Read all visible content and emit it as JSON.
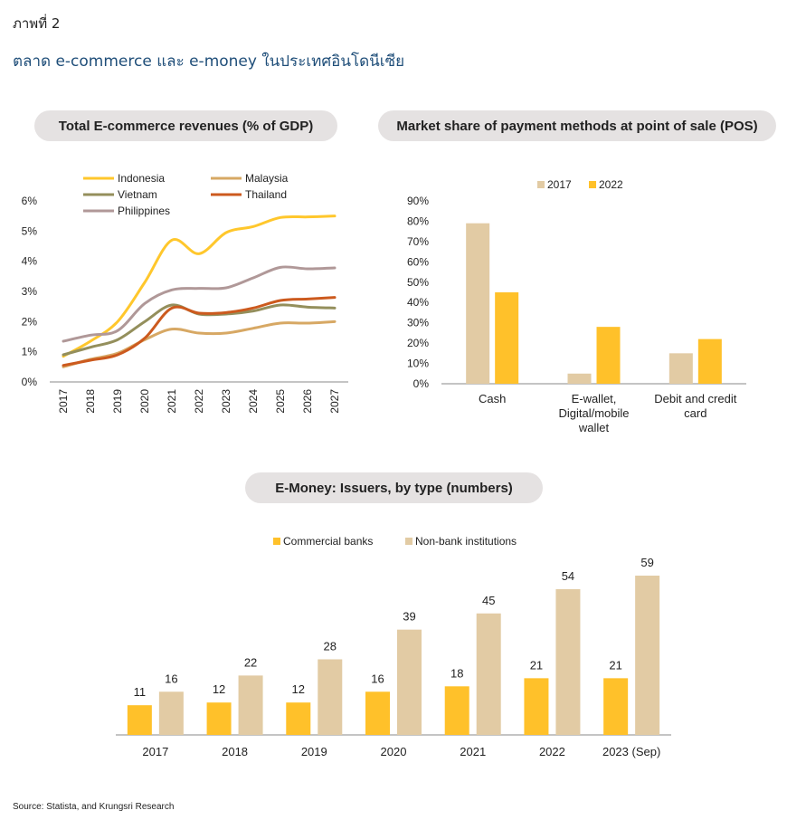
{
  "figure_label": "ภาพที่ 2",
  "figure_title": "ตลาด e-commerce และ e-money ในประเทศอินโดนีเซีย",
  "source": "Source:  Statista, and Krungsri Research",
  "chart_data": [
    {
      "type": "line",
      "title": "Total E-commerce revenues (% of GDP)",
      "x": [
        "2017",
        "2018",
        "2019",
        "2020",
        "2021",
        "2022",
        "2023",
        "2024",
        "2025",
        "2026",
        "2027"
      ],
      "y_ticks": [
        "0%",
        "1%",
        "2%",
        "3%",
        "4%",
        "5%",
        "6%"
      ],
      "ylim": [
        0,
        6
      ],
      "legend_position": "top",
      "series": [
        {
          "name": "Indonesia",
          "color": "#ffc72c",
          "values": [
            0.85,
            1.35,
            2.0,
            3.3,
            4.7,
            4.25,
            4.95,
            5.15,
            5.45,
            5.47,
            5.5
          ]
        },
        {
          "name": "Malaysia",
          "color": "#d7a864",
          "values": [
            0.5,
            0.75,
            0.95,
            1.4,
            1.75,
            1.62,
            1.62,
            1.78,
            1.95,
            1.95,
            2.0
          ]
        },
        {
          "name": "Vietnam",
          "color": "#948f5c",
          "values": [
            0.9,
            1.15,
            1.4,
            2.0,
            2.55,
            2.25,
            2.25,
            2.35,
            2.55,
            2.48,
            2.45
          ]
        },
        {
          "name": "Thailand",
          "color": "#cc5a1e",
          "values": [
            0.55,
            0.72,
            0.9,
            1.45,
            2.45,
            2.28,
            2.3,
            2.45,
            2.7,
            2.75,
            2.8
          ]
        },
        {
          "name": "Philippines",
          "color": "#b09898",
          "values": [
            1.35,
            1.55,
            1.7,
            2.6,
            3.05,
            3.1,
            3.12,
            3.45,
            3.8,
            3.75,
            3.78
          ]
        }
      ]
    },
    {
      "type": "bar",
      "title": "Market share of payment methods at point of sale (POS)",
      "categories": [
        [
          "Cash"
        ],
        [
          "E-wallet,",
          "Digital/mobile",
          "wallet"
        ],
        [
          "Debit and credit",
          "card"
        ]
      ],
      "y_ticks": [
        "0%",
        "10%",
        "20%",
        "30%",
        "40%",
        "50%",
        "60%",
        "70%",
        "80%",
        "90%"
      ],
      "ylim": [
        0,
        90
      ],
      "legend_position": "top",
      "series": [
        {
          "name": "2017",
          "color": "#e2cba4",
          "values": [
            79,
            5,
            15
          ]
        },
        {
          "name": "2022",
          "color": "#ffc12a",
          "values": [
            45,
            28,
            22
          ]
        }
      ]
    },
    {
      "type": "bar",
      "title": "E-Money: Issuers, by type (numbers)",
      "categories": [
        "2017",
        "2018",
        "2019",
        "2020",
        "2021",
        "2022",
        "2023 (Sep)"
      ],
      "ylim": [
        0,
        59
      ],
      "legend_position": "top",
      "series": [
        {
          "name": "Commercial banks",
          "color": "#ffc12a",
          "values": [
            11,
            12,
            12,
            16,
            18,
            21,
            21
          ],
          "labels": [
            "11",
            "12",
            "12",
            "16",
            "18",
            "21",
            "21"
          ]
        },
        {
          "name": "Non-bank institutions",
          "color": "#e2cba4",
          "values": [
            16,
            22,
            28,
            39,
            45,
            54,
            59
          ],
          "labels": [
            "16",
            "22",
            "28",
            "39",
            "45",
            "54",
            "59"
          ]
        }
      ]
    }
  ]
}
